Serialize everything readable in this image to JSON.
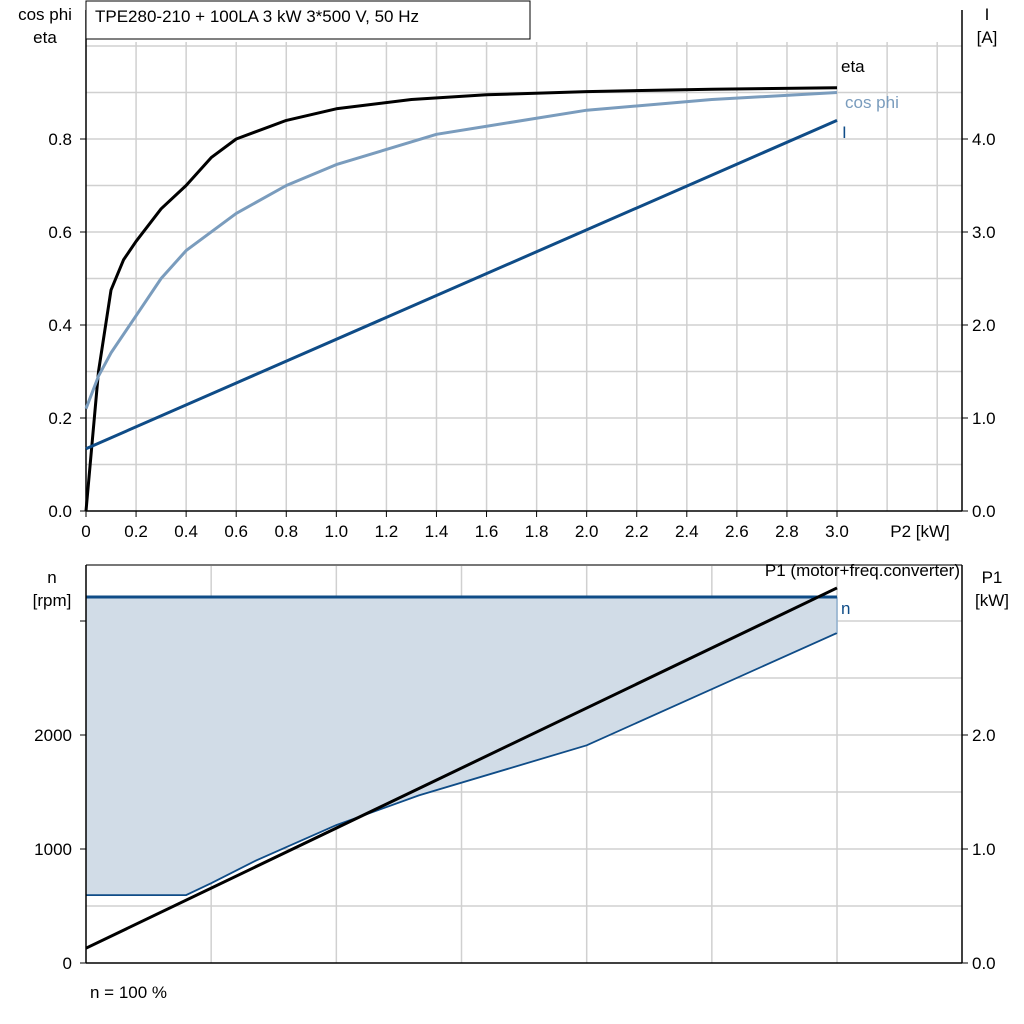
{
  "chart_data": [
    {
      "type": "line",
      "title": "TPE280-210 + 100LA   3 kW   3*500 V, 50 Hz",
      "xlabel": "P2 [kW]",
      "ylabel_left": [
        "cos phi",
        "eta"
      ],
      "ylabel_right": [
        "I",
        "[A]"
      ],
      "xlim": [
        0,
        3.5
      ],
      "ylim_left": [
        0,
        1.08
      ],
      "ylim_right": [
        0,
        5.4
      ],
      "x_ticks": [
        "0",
        "0.2",
        "0.4",
        "0.6",
        "0.8",
        "1.0",
        "1.2",
        "1.4",
        "1.6",
        "1.8",
        "2.0",
        "2.2",
        "2.4",
        "2.6",
        "2.8",
        "3.0"
      ],
      "y_ticks_left": [
        "0.0",
        "0.2",
        "0.4",
        "0.6",
        "0.8"
      ],
      "y_ticks_right": [
        "0.0",
        "1.0",
        "2.0",
        "3.0",
        "4.0"
      ],
      "grid": true,
      "series": [
        {
          "name": "eta",
          "axis": "left",
          "color": "#000000",
          "x": [
            0,
            0.05,
            0.1,
            0.15,
            0.2,
            0.3,
            0.4,
            0.5,
            0.6,
            0.8,
            1.0,
            1.3,
            1.6,
            2.0,
            2.5,
            3.0
          ],
          "y": [
            0,
            0.3,
            0.475,
            0.54,
            0.58,
            0.65,
            0.7,
            0.76,
            0.8,
            0.84,
            0.865,
            0.885,
            0.895,
            0.902,
            0.907,
            0.91
          ]
        },
        {
          "name": "cos phi",
          "axis": "left",
          "color": "#7a9cbd",
          "x": [
            0,
            0.05,
            0.1,
            0.2,
            0.3,
            0.4,
            0.6,
            0.8,
            1.0,
            1.4,
            2.0,
            2.5,
            3.0
          ],
          "y": [
            0.22,
            0.29,
            0.34,
            0.42,
            0.5,
            0.56,
            0.64,
            0.7,
            0.745,
            0.81,
            0.862,
            0.885,
            0.9
          ]
        },
        {
          "name": "I",
          "axis": "right",
          "color": "#0f4c87",
          "x": [
            0,
            3.0
          ],
          "y": [
            0.67,
            4.2
          ]
        }
      ]
    },
    {
      "type": "area",
      "ylabel_left": [
        "n",
        "[rpm]"
      ],
      "ylabel_right": [
        "P1",
        "[kW]"
      ],
      "xlabel": "n = 100 %",
      "xlim": [
        0,
        3.5
      ],
      "ylim_left": [
        0,
        3490
      ],
      "ylim_right": [
        0,
        3.49
      ],
      "y_ticks_left": [
        "0",
        "1000",
        "2000"
      ],
      "y_ticks_right": [
        "0.0",
        "1.0",
        "2.0"
      ],
      "grid": true,
      "series": [
        {
          "name": "n",
          "axis": "left",
          "color": "#0f4c87",
          "fill": "#d1dce7",
          "max": {
            "x": [
              0,
              3.0
            ],
            "y": [
              3210,
              3210
            ]
          },
          "min": {
            "x": [
              0,
              0.4,
              0.5,
              0.68,
              1.0,
              1.33,
              2.0,
              3.0
            ],
            "y": [
              596,
              596,
              700,
              900,
              1210,
              1470,
              1910,
              2895
            ]
          }
        },
        {
          "name": "P1 (motor+freq.converter)",
          "axis": "right",
          "color": "#000000",
          "x": [
            0,
            3.0
          ],
          "y": [
            0.13,
            3.29
          ]
        }
      ]
    }
  ]
}
